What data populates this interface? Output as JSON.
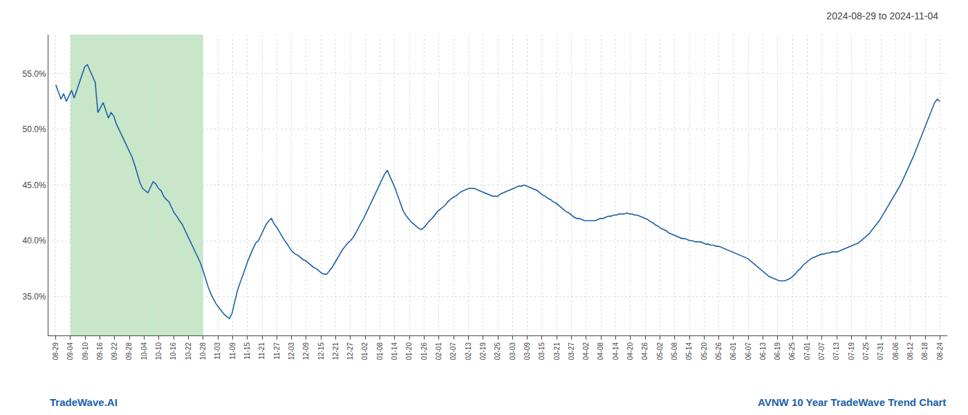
{
  "chart_data": {
    "type": "line",
    "title": "2024-08-29 to 2024-11-04",
    "annotations": [
      "TradeWave.AI",
      "AVNW 10 Year TradeWave Trend Chart"
    ],
    "color": "#1a5fa8",
    "grid": true,
    "bands": [
      {
        "from": "09-04",
        "to": "10-28",
        "color": "#c8e6c8"
      }
    ],
    "xlim": [
      -0.5,
      60.5
    ],
    "xticks": [
      {
        "value": 0,
        "label": "08-29"
      },
      {
        "value": 1,
        "label": "09-04"
      },
      {
        "value": 2,
        "label": "09-10"
      },
      {
        "value": 3,
        "label": "09-16"
      },
      {
        "value": 4,
        "label": "09-22"
      },
      {
        "value": 5,
        "label": "09-28"
      },
      {
        "value": 6,
        "label": "10-04"
      },
      {
        "value": 7,
        "label": "10-10"
      },
      {
        "value": 8,
        "label": "10-16"
      },
      {
        "value": 9,
        "label": "10-22"
      },
      {
        "value": 10,
        "label": "10-28"
      },
      {
        "value": 11,
        "label": "11-03"
      },
      {
        "value": 12,
        "label": "11-09"
      },
      {
        "value": 13,
        "label": "11-15"
      },
      {
        "value": 14,
        "label": "11-21"
      },
      {
        "value": 15,
        "label": "11-27"
      },
      {
        "value": 16,
        "label": "12-03"
      },
      {
        "value": 17,
        "label": "12-09"
      },
      {
        "value": 18,
        "label": "12-15"
      },
      {
        "value": 19,
        "label": "12-21"
      },
      {
        "value": 20,
        "label": "12-27"
      },
      {
        "value": 21,
        "label": "01-02"
      },
      {
        "value": 22,
        "label": "01-08"
      },
      {
        "value": 23,
        "label": "01-14"
      },
      {
        "value": 24,
        "label": "01-20"
      },
      {
        "value": 25,
        "label": "01-26"
      },
      {
        "value": 26,
        "label": "02-01"
      },
      {
        "value": 27,
        "label": "02-07"
      },
      {
        "value": 28,
        "label": "02-13"
      },
      {
        "value": 29,
        "label": "02-19"
      },
      {
        "value": 30,
        "label": "02-25"
      },
      {
        "value": 31,
        "label": "03-03"
      },
      {
        "value": 32,
        "label": "03-09"
      },
      {
        "value": 33,
        "label": "03-15"
      },
      {
        "value": 34,
        "label": "03-21"
      },
      {
        "value": 35,
        "label": "03-27"
      },
      {
        "value": 36,
        "label": "04-02"
      },
      {
        "value": 37,
        "label": "04-08"
      },
      {
        "value": 38,
        "label": "04-14"
      },
      {
        "value": 39,
        "label": "04-20"
      },
      {
        "value": 40,
        "label": "04-26"
      },
      {
        "value": 41,
        "label": "05-02"
      },
      {
        "value": 42,
        "label": "05-08"
      },
      {
        "value": 43,
        "label": "05-14"
      },
      {
        "value": 44,
        "label": "05-20"
      },
      {
        "value": 45,
        "label": "05-26"
      },
      {
        "value": 46,
        "label": "06-01"
      },
      {
        "value": 47,
        "label": "06-07"
      },
      {
        "value": 48,
        "label": "06-13"
      },
      {
        "value": 49,
        "label": "06-19"
      },
      {
        "value": 50,
        "label": "06-25"
      },
      {
        "value": 51,
        "label": "07-01"
      },
      {
        "value": 52,
        "label": "07-07"
      },
      {
        "value": 53,
        "label": "07-13"
      },
      {
        "value": 54,
        "label": "07-19"
      },
      {
        "value": 55,
        "label": "07-25"
      },
      {
        "value": 56,
        "label": "07-31"
      },
      {
        "value": 57,
        "label": "08-06"
      },
      {
        "value": 58,
        "label": "08-12"
      },
      {
        "value": 59,
        "label": "08-18"
      },
      {
        "value": 60,
        "label": "08-24"
      }
    ],
    "ylim": [
      0.315,
      0.585
    ],
    "yticks": [
      {
        "value": 0.35,
        "label": "35.0%"
      },
      {
        "value": 0.4,
        "label": "40.0%"
      },
      {
        "value": 0.45,
        "label": "45.0%"
      },
      {
        "value": 0.5,
        "label": "50.0%"
      },
      {
        "value": 0.55,
        "label": "55.0%"
      }
    ],
    "values": [
      0.54,
      0.533,
      0.527,
      0.532,
      0.525,
      0.53,
      0.535,
      0.528,
      0.535,
      0.542,
      0.549,
      0.556,
      0.558,
      0.553,
      0.548,
      0.542,
      0.515,
      0.52,
      0.524,
      0.517,
      0.51,
      0.515,
      0.512,
      0.505,
      0.5,
      0.495,
      0.49,
      0.485,
      0.48,
      0.475,
      0.468,
      0.46,
      0.452,
      0.447,
      0.445,
      0.443,
      0.448,
      0.453,
      0.451,
      0.447,
      0.445,
      0.44,
      0.437,
      0.435,
      0.43,
      0.425,
      0.422,
      0.418,
      0.415,
      0.41,
      0.405,
      0.4,
      0.395,
      0.39,
      0.385,
      0.38,
      0.373,
      0.365,
      0.358,
      0.352,
      0.347,
      0.343,
      0.34,
      0.337,
      0.334,
      0.332,
      0.33,
      0.335,
      0.345,
      0.355,
      0.362,
      0.368,
      0.375,
      0.382,
      0.388,
      0.393,
      0.398,
      0.4,
      0.405,
      0.41,
      0.415,
      0.418,
      0.42,
      0.415,
      0.412,
      0.408,
      0.404,
      0.4,
      0.397,
      0.393,
      0.39,
      0.388,
      0.387,
      0.385,
      0.383,
      0.382,
      0.38,
      0.378,
      0.376,
      0.375,
      0.373,
      0.371,
      0.37,
      0.37,
      0.373,
      0.376,
      0.38,
      0.384,
      0.388,
      0.392,
      0.395,
      0.398,
      0.4,
      0.403,
      0.407,
      0.412,
      0.416,
      0.42,
      0.425,
      0.43,
      0.435,
      0.44,
      0.445,
      0.45,
      0.455,
      0.46,
      0.463,
      0.458,
      0.453,
      0.447,
      0.44,
      0.433,
      0.427,
      0.423,
      0.42,
      0.417,
      0.415,
      0.413,
      0.411,
      0.41,
      0.412,
      0.415,
      0.418,
      0.42,
      0.423,
      0.426,
      0.428,
      0.43,
      0.432,
      0.435,
      0.437,
      0.439,
      0.44,
      0.442,
      0.444,
      0.445,
      0.446,
      0.447,
      0.447,
      0.447,
      0.446,
      0.445,
      0.444,
      0.443,
      0.442,
      0.441,
      0.44,
      0.44,
      0.44,
      0.442,
      0.443,
      0.444,
      0.445,
      0.446,
      0.447,
      0.448,
      0.449,
      0.449,
      0.45,
      0.449,
      0.448,
      0.447,
      0.446,
      0.445,
      0.443,
      0.441,
      0.44,
      0.438,
      0.437,
      0.435,
      0.434,
      0.432,
      0.43,
      0.428,
      0.426,
      0.425,
      0.423,
      0.421,
      0.42,
      0.42,
      0.419,
      0.418,
      0.418,
      0.418,
      0.418,
      0.418,
      0.419,
      0.42,
      0.42,
      0.421,
      0.422,
      0.422,
      0.423,
      0.423,
      0.424,
      0.424,
      0.424,
      0.425,
      0.424,
      0.424,
      0.423,
      0.423,
      0.422,
      0.421,
      0.42,
      0.419,
      0.417,
      0.416,
      0.414,
      0.413,
      0.411,
      0.41,
      0.409,
      0.407,
      0.406,
      0.405,
      0.404,
      0.403,
      0.402,
      0.402,
      0.401,
      0.4,
      0.4,
      0.399,
      0.399,
      0.399,
      0.398,
      0.397,
      0.397,
      0.396,
      0.396,
      0.395,
      0.395,
      0.394,
      0.393,
      0.392,
      0.391,
      0.39,
      0.389,
      0.388,
      0.387,
      0.386,
      0.385,
      0.384,
      0.382,
      0.38,
      0.378,
      0.376,
      0.374,
      0.372,
      0.37,
      0.368,
      0.367,
      0.366,
      0.365,
      0.364,
      0.364,
      0.364,
      0.365,
      0.366,
      0.368,
      0.37,
      0.373,
      0.375,
      0.378,
      0.38,
      0.382,
      0.384,
      0.385,
      0.386,
      0.387,
      0.388,
      0.388,
      0.389,
      0.389,
      0.39,
      0.39,
      0.39,
      0.391,
      0.392,
      0.393,
      0.394,
      0.395,
      0.396,
      0.397,
      0.398,
      0.4,
      0.402,
      0.404,
      0.406,
      0.409,
      0.412,
      0.415,
      0.418,
      0.422,
      0.426,
      0.43,
      0.434,
      0.438,
      0.442,
      0.446,
      0.45,
      0.455,
      0.46,
      0.465,
      0.47,
      0.476,
      0.482,
      0.488,
      0.494,
      0.5,
      0.506,
      0.513,
      0.519,
      0.524,
      0.527,
      0.525
    ]
  }
}
